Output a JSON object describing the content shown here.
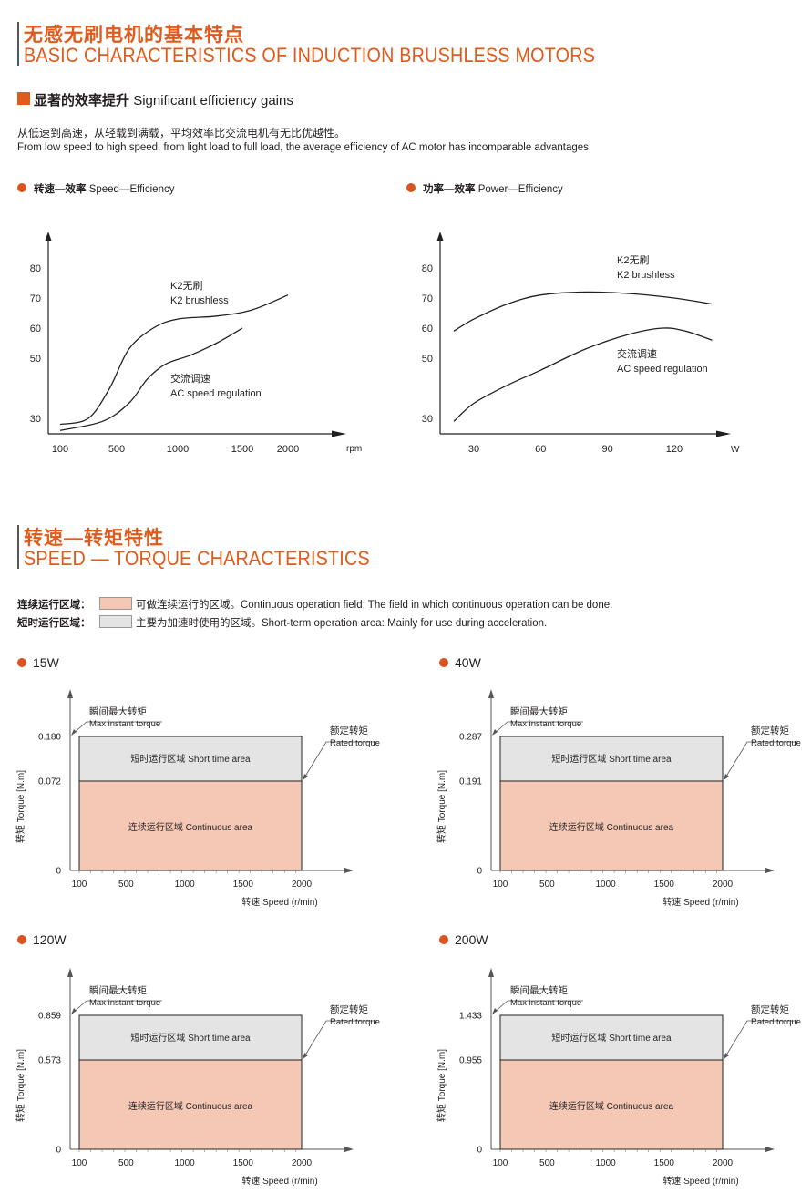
{
  "section1": {
    "title_cn": "无感无刷电机的基本特点",
    "title_en": "BASIC CHARACTERISTICS OF INDUCTION BRUSHLESS MOTORS",
    "subtitle_cn": "显著的效率提升",
    "subtitle_en": "Significant efficiency gains",
    "desc_cn": "从低速到高速，从轻载到满载，平均效率比交流电机有无比优越性。",
    "desc_en": "From low speed to high speed, from light load to full load, the average efficiency of AC motor has incomparable advantages."
  },
  "chart_data": [
    {
      "type": "line",
      "title": "转速—效率 Speed—Efficiency",
      "title_cn": "转速—效率",
      "title_en": "Speed—Efficiency",
      "xlabel": "rpm",
      "ylabel": "",
      "x_ticks": [
        100,
        500,
        1000,
        1500,
        2000
      ],
      "y_ticks": [
        30,
        50,
        60,
        70,
        80
      ],
      "series": [
        {
          "name": "K2无刷 K2 brushless",
          "name_cn": "K2无刷",
          "name_en": "K2 brushless",
          "points": [
            [
              100,
              28
            ],
            [
              300,
              30
            ],
            [
              450,
              40
            ],
            [
              600,
              53
            ],
            [
              800,
              60
            ],
            [
              1000,
              63
            ],
            [
              1300,
              64
            ],
            [
              1600,
              66
            ],
            [
              2000,
              71
            ]
          ]
        },
        {
          "name": "交流调速 AC speed regulation",
          "name_cn": "交流调速",
          "name_en": "AC speed regulation",
          "points": [
            [
              100,
              26
            ],
            [
              400,
              29
            ],
            [
              600,
              35
            ],
            [
              750,
              43
            ],
            [
              900,
              48
            ],
            [
              1100,
              51
            ],
            [
              1300,
              55
            ],
            [
              1500,
              60
            ]
          ]
        }
      ]
    },
    {
      "type": "line",
      "title": "功率—效率 Power—Efficiency",
      "title_cn": "功率—效率",
      "title_en": "Power—Efficiency",
      "xlabel": "W",
      "ylabel": "",
      "x_ticks": [
        30,
        60,
        90,
        120
      ],
      "y_ticks": [
        30,
        50,
        60,
        70,
        80
      ],
      "series": [
        {
          "name": "K2无刷 K2 brushless",
          "name_cn": "K2无刷",
          "name_en": "K2 brushless",
          "points": [
            [
              21,
              59
            ],
            [
              30,
              63
            ],
            [
              45,
              68
            ],
            [
              60,
              71
            ],
            [
              80,
              72
            ],
            [
              100,
              71.5
            ],
            [
              120,
              70
            ],
            [
              137,
              68
            ]
          ]
        },
        {
          "name": "交流调速 AC speed regulation",
          "name_cn": "交流调速",
          "name_en": "AC speed regulation",
          "points": [
            [
              21,
              29
            ],
            [
              30,
              35
            ],
            [
              45,
              41
            ],
            [
              60,
              46
            ],
            [
              80,
              53
            ],
            [
              100,
              58
            ],
            [
              115,
              60
            ],
            [
              125,
              59
            ],
            [
              137,
              56
            ]
          ]
        }
      ]
    },
    {
      "type": "area",
      "title": "15W",
      "x_ticks": [
        100,
        500,
        1000,
        1500,
        2000
      ],
      "y_ticks": [
        "0",
        "0.072",
        "0.180"
      ],
      "max_torque": 0.18,
      "rated_torque": 0.072,
      "speed_range": [
        100,
        2000
      ]
    },
    {
      "type": "area",
      "title": "40W",
      "x_ticks": [
        100,
        500,
        1000,
        1500,
        2000
      ],
      "y_ticks": [
        "0",
        "0.191",
        "0.287"
      ],
      "max_torque": 0.287,
      "rated_torque": 0.191,
      "speed_range": [
        100,
        2000
      ]
    },
    {
      "type": "area",
      "title": "120W",
      "x_ticks": [
        100,
        500,
        1000,
        1500,
        2000
      ],
      "y_ticks": [
        "0",
        "0.573",
        "0.859"
      ],
      "max_torque": 0.859,
      "rated_torque": 0.573,
      "speed_range": [
        100,
        2000
      ]
    },
    {
      "type": "area",
      "title": "200W",
      "x_ticks": [
        100,
        500,
        1000,
        1500,
        2000
      ],
      "y_ticks": [
        "0",
        "0.955",
        "1.433"
      ],
      "max_torque": 1.433,
      "rated_torque": 0.955,
      "speed_range": [
        100,
        2000
      ]
    }
  ],
  "section2": {
    "title_cn": "转速—转矩特性",
    "title_en": "SPEED — TORQUE CHARACTERISTICS",
    "legend": [
      {
        "label_cn": "连续运行区域",
        "colon": "：",
        "desc": "可做连续运行的区域。Continuous operation field: The field in which continuous operation can be done.",
        "color": "#f5c8b6"
      },
      {
        "label_cn": "短时运行区域",
        "colon": "：",
        "desc": "主要为加速时使用的区域。Short-term operation area: Mainly for use during acceleration.",
        "color": "#e4e4e4"
      }
    ]
  },
  "torque_labels": {
    "max_cn": "瞬间最大转矩",
    "max_en": "Max instant torque",
    "rated_cn": "额定转矩",
    "rated_en": "Rated torque",
    "short_area": "短时运行区域 Short time area",
    "cont_area": "连续运行区域 Continuous area",
    "xlabel": "转速 Speed (r/min)",
    "ylabel": "转矩 Torque [N.m]"
  },
  "colors": {
    "accent": "#e05a1c",
    "continuous": "#f5c8b6",
    "short": "#e4e4e4"
  }
}
